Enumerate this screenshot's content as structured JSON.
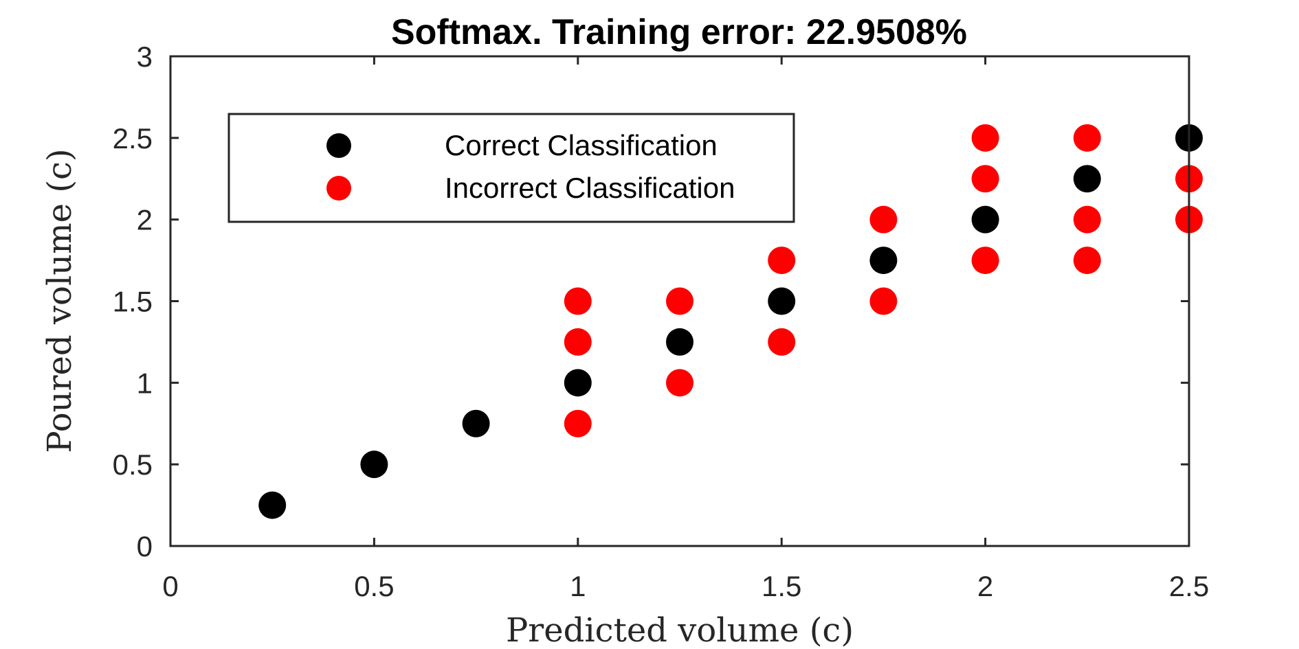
{
  "chart_data": {
    "type": "scatter",
    "title": "Softmax. Training error: 22.9508%",
    "xlabel": "Predicted volume (c)",
    "ylabel": "Poured volume (c)",
    "xlim": [
      0,
      2.5
    ],
    "ylim": [
      0,
      3
    ],
    "xticks": [
      "0",
      "0.5",
      "1",
      "1.5",
      "2",
      "2.5"
    ],
    "yticks": [
      "0",
      "0.5",
      "1",
      "1.5",
      "2",
      "2.5",
      "3"
    ],
    "grid": false,
    "legend_position": "upper-left",
    "series": [
      {
        "name": "Correct Classification",
        "color": "#000000",
        "points": [
          [
            0.25,
            0.25
          ],
          [
            0.5,
            0.5
          ],
          [
            0.75,
            0.75
          ],
          [
            1.0,
            1.0
          ],
          [
            1.25,
            1.25
          ],
          [
            1.5,
            1.5
          ],
          [
            1.75,
            1.75
          ],
          [
            2.0,
            2.0
          ],
          [
            2.25,
            2.25
          ],
          [
            2.5,
            2.5
          ]
        ]
      },
      {
        "name": "Incorrect Classification",
        "color": "#ff0000",
        "points": [
          [
            1.0,
            0.75
          ],
          [
            1.0,
            1.25
          ],
          [
            1.0,
            1.5
          ],
          [
            1.25,
            1.0
          ],
          [
            1.25,
            1.5
          ],
          [
            1.5,
            1.25
          ],
          [
            1.5,
            1.75
          ],
          [
            1.75,
            1.5
          ],
          [
            1.75,
            2.0
          ],
          [
            2.0,
            1.75
          ],
          [
            2.0,
            2.25
          ],
          [
            2.0,
            2.5
          ],
          [
            2.25,
            1.75
          ],
          [
            2.25,
            2.0
          ],
          [
            2.25,
            2.5
          ],
          [
            2.5,
            2.0
          ],
          [
            2.5,
            2.25
          ]
        ]
      }
    ]
  }
}
